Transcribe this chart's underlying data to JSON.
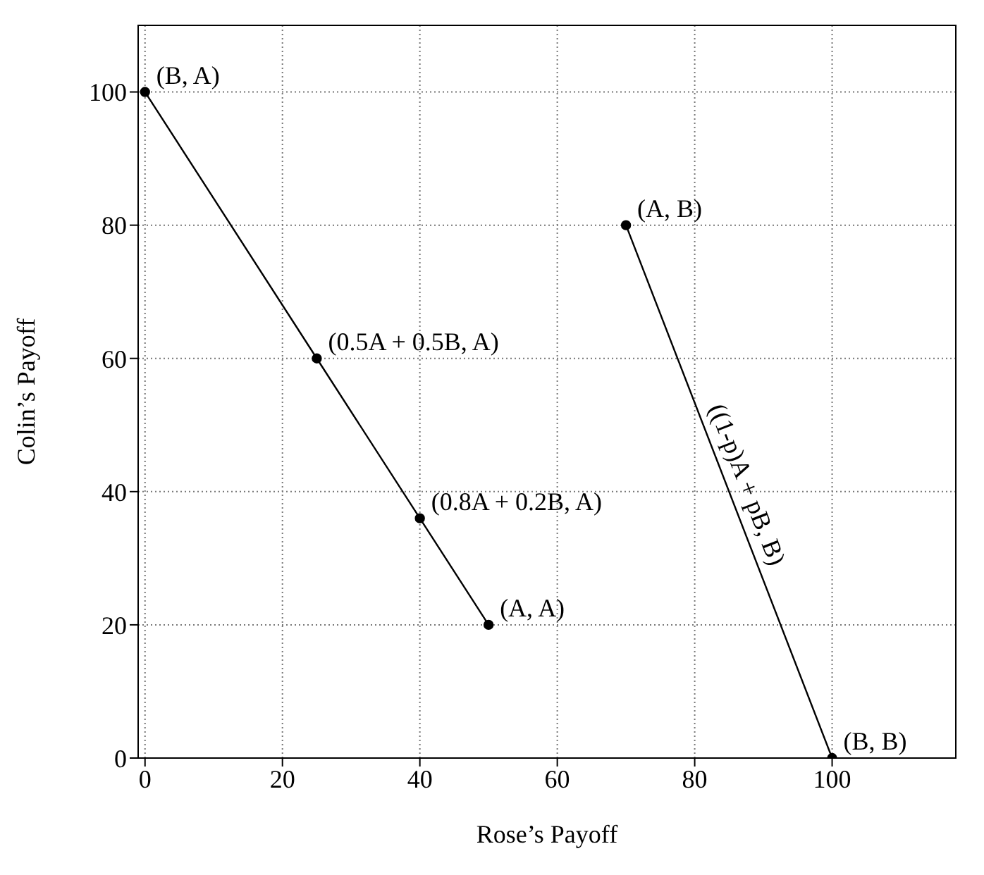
{
  "chart_data": {
    "type": "line",
    "xlabel": "Rose’s Payoff",
    "ylabel": "Colin’s Payoff",
    "xlim": [
      -1,
      118
    ],
    "ylim": [
      0,
      110
    ],
    "xticks": [
      0,
      20,
      40,
      60,
      80,
      100
    ],
    "yticks": [
      0,
      20,
      40,
      60,
      80,
      100
    ],
    "grid": true,
    "marker": "circle",
    "line_style": "solid",
    "series": [
      {
        "color": "#000000",
        "x": [
          0,
          25,
          40,
          50
        ],
        "values": [
          100,
          60,
          36,
          20
        ]
      },
      {
        "name": "((1-p)A + pB, B)",
        "color": "#000000",
        "x": [
          70,
          100
        ],
        "values": [
          80,
          0
        ]
      }
    ],
    "annotations": [
      {
        "text": "(B, A)",
        "x": 0,
        "y": 100
      },
      {
        "text": "(0.5A + 0.5B, A)",
        "x": 25,
        "y": 60
      },
      {
        "text": "(0.8A + 0.2B, A)",
        "x": 40,
        "y": 36
      },
      {
        "text": "(A, A)",
        "x": 50,
        "y": 20
      },
      {
        "text": "(A, B)",
        "x": 70,
        "y": 80
      },
      {
        "text": "(B, B)",
        "x": 100,
        "y": 0
      }
    ]
  }
}
